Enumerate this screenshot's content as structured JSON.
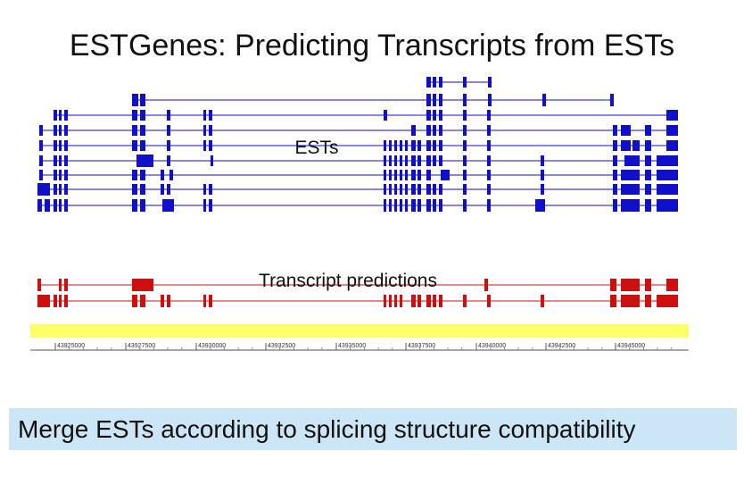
{
  "title": "ESTGenes:  Predicting Transcripts from ESTs",
  "labels": {
    "ests": "ESTs",
    "predictions": "Transcript predictions"
  },
  "caption": "Merge ESTs according to splicing structure compatibility",
  "colors": {
    "est": "#1010c8",
    "prediction": "#cc1010",
    "axis_band": "#ffff66",
    "caption_bg": "#cde6f7"
  },
  "axis": {
    "ticks": [
      "43925000",
      "43927500",
      "43930000",
      "43932500",
      "43935000",
      "43937500",
      "43940000",
      "43942500",
      "43945000"
    ]
  }
}
